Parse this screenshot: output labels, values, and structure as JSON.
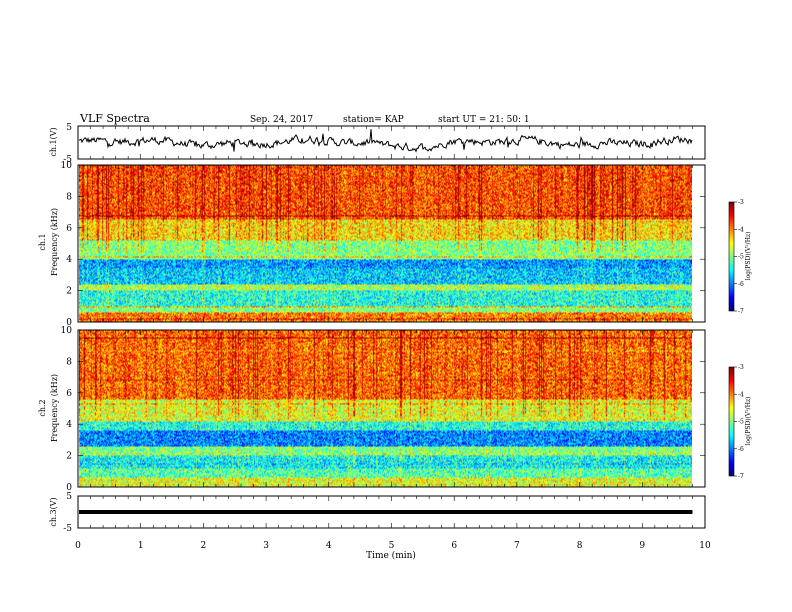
{
  "header": {
    "title": "VLF Spectra",
    "date": "Sep. 24, 2017",
    "station": "station= KAP",
    "start": "start  UT  =   21: 50: 1"
  },
  "chart_data": [
    {
      "type": "line",
      "ylabel": "ch.1(V)",
      "ylim": [
        -5,
        5
      ],
      "yticks": [
        "5",
        "-5"
      ],
      "xlim": [
        0,
        10
      ],
      "description_shape": "noisy waveform, mostly between -2 and 2 V"
    },
    {
      "type": "heatmap",
      "ylabel_prefix": "ch.1",
      "ylabel": "Frequency (kHz)",
      "ylim": [
        0,
        10
      ],
      "yticks": [
        "0",
        "2",
        "4",
        "6",
        "8",
        "10"
      ],
      "xlim": [
        0,
        10
      ],
      "colorbar": {
        "label": "log(PSD)(V²/Hz)",
        "ticks": [
          "-3",
          "-4",
          "-5",
          "-6",
          "-7"
        ],
        "range": [
          -7,
          -3
        ]
      },
      "bands": [
        {
          "from": 0,
          "to": 0.6,
          "level": -4.0
        },
        {
          "from": 0.6,
          "to": 1.0,
          "level": -5.0
        },
        {
          "from": 1.0,
          "to": 2.0,
          "level": -5.4
        },
        {
          "from": 2.0,
          "to": 2.4,
          "level": -4.8
        },
        {
          "from": 2.4,
          "to": 3.4,
          "level": -5.7
        },
        {
          "from": 3.4,
          "to": 4.0,
          "level": -5.9
        },
        {
          "from": 4.0,
          "to": 5.2,
          "level": -5.0
        },
        {
          "from": 5.2,
          "to": 6.6,
          "level": -4.4
        },
        {
          "from": 6.6,
          "to": 10.0,
          "level": -3.8
        }
      ]
    },
    {
      "type": "heatmap",
      "ylabel_prefix": "ch.2",
      "ylabel": "Frequency (kHz)",
      "ylim": [
        0,
        10
      ],
      "yticks": [
        "0",
        "2",
        "4",
        "6",
        "8",
        "10"
      ],
      "xlim": [
        0,
        10
      ],
      "colorbar": {
        "label": "log(PSD)(V²/Hz)",
        "ticks": [
          "-3",
          "-4",
          "-5",
          "-6",
          "-7"
        ],
        "range": [
          -7,
          -3
        ]
      },
      "bands": [
        {
          "from": 0,
          "to": 0.6,
          "level": -4.6
        },
        {
          "from": 0.6,
          "to": 1.2,
          "level": -5.2
        },
        {
          "from": 1.2,
          "to": 2.0,
          "level": -5.5
        },
        {
          "from": 2.0,
          "to": 2.6,
          "level": -5.0
        },
        {
          "from": 2.6,
          "to": 3.6,
          "level": -6.0
        },
        {
          "from": 3.6,
          "to": 4.2,
          "level": -5.4
        },
        {
          "from": 4.2,
          "to": 5.6,
          "level": -4.6
        },
        {
          "from": 5.6,
          "to": 10.0,
          "level": -3.9
        }
      ]
    },
    {
      "type": "line",
      "ylabel": "ch.3(V)",
      "ylim": [
        -5,
        5
      ],
      "yticks": [
        "5",
        "-5"
      ],
      "xlim": [
        0,
        10
      ],
      "constant_value": 0
    }
  ],
  "xaxis": {
    "label": "Time  (min)",
    "ticks": [
      "0",
      "1",
      "2",
      "3",
      "4",
      "5",
      "6",
      "7",
      "8",
      "9",
      "10"
    ],
    "xlim": [
      0,
      10
    ],
    "data_end": 9.8
  }
}
